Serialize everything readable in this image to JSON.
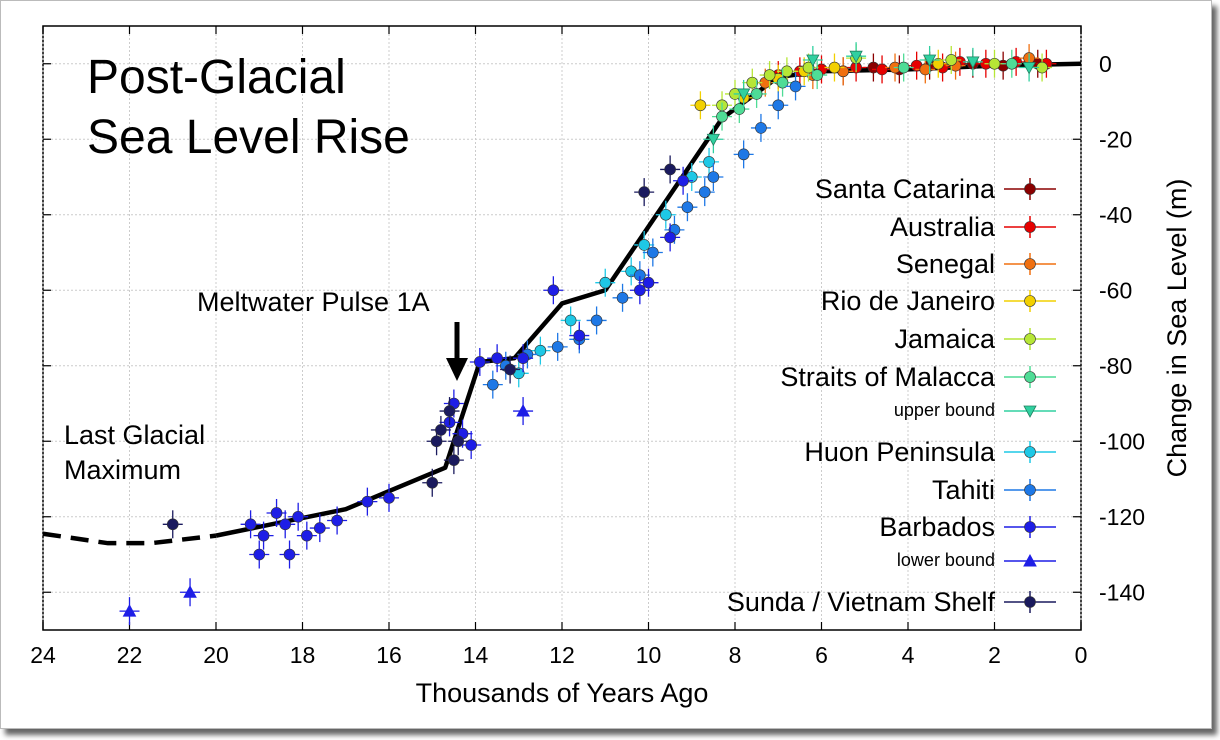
{
  "chart_data": {
    "type": "scatter",
    "title_lines": [
      "Post-Glacial",
      "Sea Level Rise"
    ],
    "xlabel": "Thousands of Years Ago",
    "ylabel": "Change in Sea Level (m)",
    "xlim": [
      24,
      0
    ],
    "ylim": [
      -150,
      10
    ],
    "x_ticks": [
      24,
      22,
      20,
      18,
      16,
      14,
      12,
      10,
      8,
      6,
      4,
      2,
      0
    ],
    "y_ticks": [
      0,
      -20,
      -40,
      -60,
      -80,
      -100,
      -120,
      -140
    ],
    "grid": true,
    "legend_position": "right",
    "annotations": {
      "meltwater": "Meltwater Pulse 1A",
      "lgm_line1": "Last Glacial",
      "lgm_line2": "Maximum"
    },
    "trend_line": {
      "solid": [
        [
          20,
          -125
        ],
        [
          17,
          -118
        ],
        [
          14.7,
          -107
        ],
        [
          13.9,
          -79
        ],
        [
          13.1,
          -78
        ],
        [
          12,
          -63.5
        ],
        [
          11,
          -60
        ],
        [
          8.3,
          -14.5
        ],
        [
          7,
          -3.5
        ],
        [
          6,
          -2
        ],
        [
          4,
          -1.5
        ],
        [
          2,
          -0.5
        ],
        [
          0,
          0
        ]
      ],
      "dashed": [
        [
          24,
          -124.5
        ],
        [
          22.5,
          -127
        ],
        [
          21.5,
          -127
        ],
        [
          20,
          -125
        ]
      ]
    },
    "series": [
      {
        "name": "Santa Catarina",
        "color": "#8b0000",
        "marker": "circle",
        "points": [
          [
            5.5,
            -2
          ],
          [
            4.8,
            -1
          ],
          [
            4.2,
            -1.5
          ],
          [
            3.5,
            -0.5
          ],
          [
            2.5,
            0
          ],
          [
            1.8,
            -0.5
          ],
          [
            1.0,
            0
          ]
        ]
      },
      {
        "name": "Australia",
        "color": "#e60000",
        "marker": "circle",
        "points": [
          [
            7.0,
            -3
          ],
          [
            6.5,
            -2
          ],
          [
            6.0,
            -1.5
          ],
          [
            5.2,
            -1
          ],
          [
            4.6,
            -1.5
          ],
          [
            3.8,
            -0.5
          ],
          [
            3.2,
            -1
          ],
          [
            2.8,
            0.5
          ],
          [
            2.2,
            0
          ],
          [
            1.5,
            0.5
          ],
          [
            0.8,
            0
          ]
        ]
      },
      {
        "name": "Senegal",
        "color": "#f07010",
        "marker": "circle",
        "points": [
          [
            7.3,
            -5
          ],
          [
            6.2,
            -3
          ],
          [
            5.5,
            -2
          ],
          [
            4.3,
            -1
          ],
          [
            3.6,
            -1.5
          ],
          [
            2.9,
            -0.5
          ],
          [
            1.2,
            1.5
          ]
        ]
      },
      {
        "name": "Rio de Janeiro",
        "color": "#f2d000",
        "marker": "circle",
        "points": [
          [
            8.8,
            -11
          ],
          [
            7.8,
            -9
          ],
          [
            7.0,
            -4
          ],
          [
            6.4,
            -2
          ],
          [
            5.7,
            -1
          ],
          [
            3.3,
            0
          ]
        ]
      },
      {
        "name": "Jamaica",
        "color": "#b6e636",
        "marker": "circle",
        "points": [
          [
            8.3,
            -11
          ],
          [
            8.0,
            -8
          ],
          [
            7.6,
            -5
          ],
          [
            7.2,
            -3
          ],
          [
            6.8,
            -2
          ],
          [
            6.3,
            -1
          ],
          [
            5.2,
            1.5
          ],
          [
            3.0,
            1
          ],
          [
            2.0,
            0
          ],
          [
            0.9,
            -1
          ]
        ]
      },
      {
        "name": "Straits of Malacca",
        "color": "#4fdc96",
        "marker": "circle",
        "points": [
          [
            8.3,
            -14
          ],
          [
            7.9,
            -12
          ],
          [
            7.5,
            -8
          ],
          [
            6.9,
            -5
          ],
          [
            6.1,
            -3
          ],
          [
            4.1,
            -1
          ],
          [
            1.6,
            0
          ]
        ]
      },
      {
        "name": "upper bound",
        "color": "#30d0a0",
        "marker": "triangle-down",
        "points": [
          [
            8.5,
            -20
          ],
          [
            7.8,
            -8
          ],
          [
            6.2,
            1
          ],
          [
            5.2,
            2
          ],
          [
            3.5,
            1
          ],
          [
            2.5,
            0.5
          ],
          [
            1.2,
            -1
          ]
        ]
      },
      {
        "name": "Huon Peninsula",
        "color": "#1ec8e6",
        "marker": "circle",
        "points": [
          [
            13.0,
            -82
          ],
          [
            12.5,
            -76
          ],
          [
            11.8,
            -68
          ],
          [
            11.0,
            -58
          ],
          [
            10.4,
            -55
          ],
          [
            10.1,
            -48
          ],
          [
            9.6,
            -40
          ],
          [
            9.0,
            -30
          ],
          [
            8.6,
            -26
          ]
        ]
      },
      {
        "name": "Tahiti",
        "color": "#1e78e6",
        "marker": "circle",
        "points": [
          [
            13.6,
            -85
          ],
          [
            13.3,
            -80
          ],
          [
            12.8,
            -77
          ],
          [
            12.1,
            -75
          ],
          [
            11.6,
            -73
          ],
          [
            11.2,
            -68
          ],
          [
            10.6,
            -62
          ],
          [
            10.2,
            -56
          ],
          [
            9.9,
            -50
          ],
          [
            9.4,
            -44
          ],
          [
            9.1,
            -38
          ],
          [
            8.7,
            -34
          ],
          [
            8.5,
            -30
          ],
          [
            7.8,
            -24
          ],
          [
            7.4,
            -17
          ],
          [
            7.0,
            -11
          ],
          [
            6.6,
            -6
          ]
        ]
      },
      {
        "name": "Barbados",
        "color": "#1e1ee6",
        "marker": "circle",
        "points": [
          [
            19.2,
            -122
          ],
          [
            18.9,
            -125
          ],
          [
            18.6,
            -119
          ],
          [
            18.4,
            -122
          ],
          [
            18.1,
            -120
          ],
          [
            17.9,
            -125
          ],
          [
            17.6,
            -123
          ],
          [
            17.2,
            -121
          ],
          [
            16.5,
            -116
          ],
          [
            16.0,
            -115
          ],
          [
            14.6,
            -95
          ],
          [
            14.5,
            -90
          ],
          [
            14.3,
            -98
          ],
          [
            14.1,
            -101
          ],
          [
            13.9,
            -79
          ],
          [
            13.5,
            -78
          ],
          [
            12.9,
            -78
          ],
          [
            12.2,
            -60
          ],
          [
            11.6,
            -72
          ],
          [
            10.2,
            -60
          ],
          [
            10.0,
            -58
          ],
          [
            9.5,
            -46
          ],
          [
            9.2,
            -31
          ],
          [
            19.0,
            -130
          ],
          [
            18.3,
            -130
          ]
        ]
      },
      {
        "name": "lower bound",
        "color": "#1e1ee6",
        "marker": "triangle",
        "points": [
          [
            22.0,
            -145
          ],
          [
            20.6,
            -140
          ],
          [
            12.9,
            -92
          ]
        ]
      },
      {
        "name": "Sunda / Vietnam Shelf",
        "color": "#1a1a5e",
        "marker": "circle",
        "points": [
          [
            21.0,
            -122
          ],
          [
            15.0,
            -111
          ],
          [
            14.9,
            -100
          ],
          [
            14.8,
            -97
          ],
          [
            14.6,
            -92
          ],
          [
            14.4,
            -100
          ],
          [
            14.5,
            -105
          ],
          [
            13.2,
            -81
          ],
          [
            10.1,
            -34
          ],
          [
            9.5,
            -28
          ]
        ]
      }
    ]
  }
}
